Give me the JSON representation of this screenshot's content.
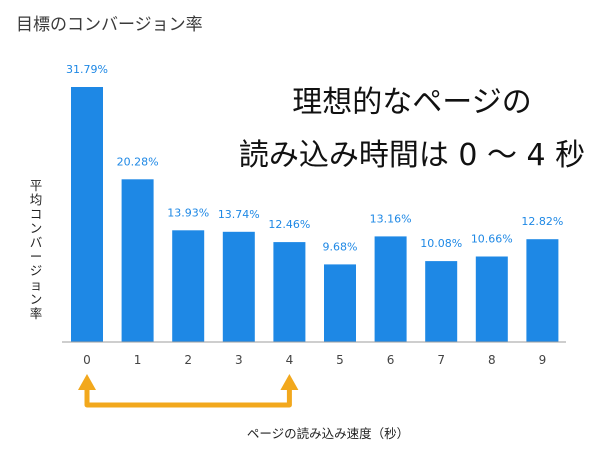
{
  "chart_data": {
    "type": "bar",
    "title": "目標のコンバージョン率",
    "xlabel": "ページの読み込み速度（秒）",
    "ylabel": "平均コンバージョン率",
    "categories": [
      "0",
      "1",
      "2",
      "3",
      "4",
      "5",
      "6",
      "7",
      "8",
      "9"
    ],
    "values": [
      31.79,
      20.28,
      13.93,
      13.74,
      12.46,
      9.68,
      13.16,
      10.08,
      10.66,
      12.82
    ],
    "data_labels": [
      "31.79%",
      "20.28%",
      "13.93%",
      "13.74%",
      "12.46%",
      "9.68%",
      "13.16%",
      "10.08%",
      "10.66%",
      "12.82%"
    ],
    "ylim": [
      0,
      31.79
    ],
    "grid": false,
    "legend": "none",
    "annotation": {
      "line1": "理想的なページの",
      "line2": "読み込み時間は 0 〜 4 秒",
      "range_from": "0",
      "range_to": "4"
    },
    "colors": {
      "bar": "#1e88e5",
      "data_label": "#1e88e5",
      "arrow": "#f2a81d",
      "baseline": "#9e9e9e"
    }
  }
}
